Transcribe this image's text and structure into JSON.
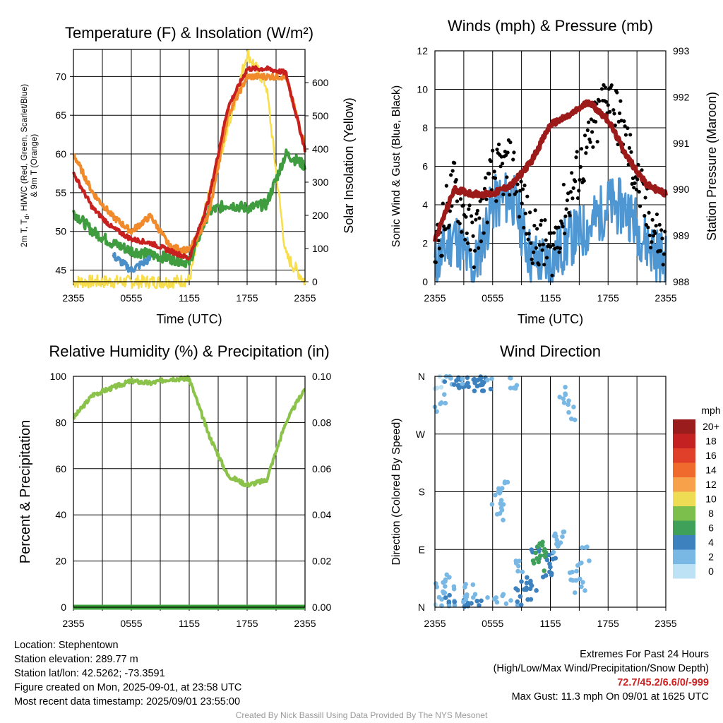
{
  "colors": {
    "temp": "#c8201f",
    "heatidx": "#3f9c3f",
    "scarlet": "#e34a20",
    "wc": "#4a8fc8",
    "t9m": "#f08a2a",
    "solar": "#f7de4a",
    "wind": "#4f97d3",
    "gust": "#000000",
    "pressure": "#9c1a1a",
    "rh": "#8bc34a",
    "precip": "#3aa13a"
  },
  "chart_data": [
    {
      "type": "line",
      "title": "Temperature (F) & Insolation (W/m²)",
      "xlabel": "Time (UTC)",
      "ylabel": "2m T, Td, HI/WC (Red, Green, Scarlet/Blue) & 9m T (Orange)",
      "ylabel_lines": [
        "2m T, T",
        "d",
        ", HI/WC (Red, Green, Scarlet/Blue)",
        "& 9m T (Orange)"
      ],
      "ylabel_right": "Solar Insolation (Yellow)",
      "x_tick_labels": [
        "2355",
        "0555",
        "1155",
        "1755",
        "2355"
      ],
      "ylim": [
        43.5,
        73.5
      ],
      "y_ticks": [
        45,
        50,
        55,
        60,
        65,
        70
      ],
      "ylim_right": [
        0,
        700
      ],
      "y_ticks_right": [
        0,
        100,
        200,
        300,
        400,
        500,
        600
      ],
      "x_hours": [
        0,
        2,
        4,
        6,
        8,
        10,
        12,
        14,
        16,
        18,
        20,
        22,
        24
      ],
      "series": [
        {
          "name": "2m T",
          "axis": "left",
          "values": [
            57.5,
            53,
            50.5,
            49,
            48.5,
            47.5,
            46.5,
            54,
            66,
            71,
            71,
            70.5,
            60.5
          ]
        },
        {
          "name": "9m T",
          "axis": "left",
          "values": [
            60,
            55,
            52,
            50,
            52,
            48,
            47.5,
            52,
            65,
            70,
            70,
            70,
            61
          ]
        },
        {
          "name": "Td",
          "axis": "left",
          "values": [
            52.5,
            50,
            48.5,
            47.5,
            47,
            46.5,
            46,
            52.5,
            53.5,
            53,
            53.5,
            60,
            58.5
          ]
        },
        {
          "name": "WC",
          "axis": "left",
          "values": [
            null,
            null,
            47,
            45,
            46.5,
            null,
            45.5,
            null,
            null,
            null,
            null,
            null,
            null
          ]
        },
        {
          "name": "Solar",
          "axis": "right",
          "values": [
            0,
            0,
            0,
            0,
            0,
            0,
            5,
            260,
            460,
            690,
            590,
            80,
            0
          ]
        }
      ]
    },
    {
      "type": "line",
      "title": "Winds (mph) & Pressure (mb)",
      "xlabel": "Time (UTC)",
      "ylabel": "Sonic Wind & Gust (Blue, Black)",
      "ylabel_right": "Station Pressure (Maroon)",
      "x_tick_labels": [
        "2355",
        "0555",
        "1155",
        "1755",
        "2355"
      ],
      "ylim": [
        0,
        12
      ],
      "y_ticks": [
        0,
        2,
        4,
        6,
        8,
        10,
        12
      ],
      "ylim_right": [
        988,
        993
      ],
      "y_ticks_right": [
        988,
        989,
        990,
        991,
        992,
        993
      ],
      "x_hours": [
        0,
        2,
        4,
        6,
        8,
        10,
        12,
        14,
        16,
        18,
        20,
        22,
        24
      ],
      "series": [
        {
          "name": "Wind",
          "axis": "left",
          "values": [
            0.8,
            2.5,
            0.5,
            4,
            4.5,
            1.2,
            1,
            2.2,
            2.8,
            4,
            3.8,
            2,
            1
          ]
        },
        {
          "name": "Gust",
          "axis": "left",
          "values": [
            1.5,
            5,
            2,
            5.5,
            6,
            2.5,
            1.5,
            4.5,
            7,
            10,
            7,
            3.5,
            1.5
          ]
        },
        {
          "name": "Pressure",
          "axis": "right",
          "values": [
            988.9,
            990,
            989.9,
            989.9,
            990.1,
            990.6,
            991.4,
            991.6,
            991.9,
            991.5,
            990.7,
            990.1,
            989.9
          ]
        }
      ]
    },
    {
      "type": "line",
      "title": "Relative Humidity (%) & Precipitation (in)",
      "ylabel": "Percent & Precipitation",
      "x_tick_labels": [
        "2355",
        "0555",
        "1155",
        "1755",
        "2355"
      ],
      "ylim": [
        0,
        100
      ],
      "y_ticks": [
        0,
        20,
        40,
        60,
        80,
        100
      ],
      "ylim_right": [
        0,
        0.1
      ],
      "y_ticks_right": [
        "0.00",
        "0.02",
        "0.04",
        "0.06",
        "0.08",
        "0.10"
      ],
      "x_hours": [
        0,
        2,
        4,
        6,
        8,
        10,
        12,
        14,
        16,
        18,
        20,
        22,
        24
      ],
      "series": [
        {
          "name": "RH",
          "axis": "left",
          "values": [
            82,
            92,
            95,
            98,
            97,
            99,
            99,
            75,
            57,
            53,
            55,
            80,
            95
          ]
        },
        {
          "name": "Precipitation",
          "axis": "right",
          "values": [
            0,
            0,
            0,
            0,
            0,
            0,
            0,
            0,
            0,
            0,
            0,
            0,
            0
          ]
        }
      ]
    },
    {
      "type": "scatter",
      "title": "Wind Direction",
      "ylabel": "Direction (Colored By Speed)",
      "x_tick_labels": [
        "2355",
        "0555",
        "1155",
        "1755",
        "2355"
      ],
      "y_tick_labels": [
        "N",
        "E",
        "S",
        "W",
        "N"
      ],
      "ylim": [
        0,
        360
      ],
      "legend_title": "mph",
      "legend": [
        {
          "label": "20+",
          "color": "#9b1c1c"
        },
        {
          "label": "18",
          "color": "#c42222"
        },
        {
          "label": "16",
          "color": "#e0402a"
        },
        {
          "label": "14",
          "color": "#f06a2e"
        },
        {
          "label": "12",
          "color": "#f7a24a"
        },
        {
          "label": "10",
          "color": "#eedc55"
        },
        {
          "label": "8",
          "color": "#7cbf4c"
        },
        {
          "label": "6",
          "color": "#3fa05a"
        },
        {
          "label": "4",
          "color": "#3d82bf"
        },
        {
          "label": "2",
          "color": "#79b8e4"
        },
        {
          "label": "0",
          "color": "#bde2f6"
        }
      ],
      "points": [
        {
          "x": 0.3,
          "dir": 350,
          "speed": 0
        },
        {
          "x": 0.5,
          "dir": 320,
          "speed": 1
        },
        {
          "x": 0.6,
          "dir": 30,
          "speed": 1
        },
        {
          "x": 1.0,
          "dir": 10,
          "speed": 2
        },
        {
          "x": 1.2,
          "dir": 5,
          "speed": 3
        },
        {
          "x": 1.5,
          "dir": 40,
          "speed": 1
        },
        {
          "x": 2.0,
          "dir": 355,
          "speed": 2
        },
        {
          "x": 2.4,
          "dir": 358,
          "speed": 4
        },
        {
          "x": 2.7,
          "dir": 350,
          "speed": 3
        },
        {
          "x": 3.0,
          "dir": 356,
          "speed": 4
        },
        {
          "x": 3.4,
          "dir": 2,
          "speed": 1
        },
        {
          "x": 3.6,
          "dir": 30,
          "speed": 2
        },
        {
          "x": 4.0,
          "dir": 352,
          "speed": 4
        },
        {
          "x": 4.5,
          "dir": 357,
          "speed": 3
        },
        {
          "x": 5.0,
          "dir": 348,
          "speed": 4
        },
        {
          "x": 5.3,
          "dir": 345,
          "speed": 3
        },
        {
          "x": 6.0,
          "dir": 5,
          "speed": 1
        },
        {
          "x": 6.5,
          "dir": 168,
          "speed": 2
        },
        {
          "x": 6.8,
          "dir": 150,
          "speed": 1
        },
        {
          "x": 7.2,
          "dir": 188,
          "speed": 2
        },
        {
          "x": 7.5,
          "dir": 10,
          "speed": 1
        },
        {
          "x": 8.0,
          "dir": 355,
          "speed": 1
        },
        {
          "x": 8.5,
          "dir": 60,
          "speed": 1
        },
        {
          "x": 9.0,
          "dir": 15,
          "speed": 4
        },
        {
          "x": 9.5,
          "dir": 40,
          "speed": 3
        },
        {
          "x": 10.0,
          "dir": 25,
          "speed": 4
        },
        {
          "x": 10.4,
          "dir": 88,
          "speed": 4
        },
        {
          "x": 10.8,
          "dir": 70,
          "speed": 5
        },
        {
          "x": 11.0,
          "dir": 90,
          "speed": 6
        },
        {
          "x": 11.3,
          "dir": 85,
          "speed": 6
        },
        {
          "x": 11.8,
          "dir": 60,
          "speed": 4
        },
        {
          "x": 12.2,
          "dir": 80,
          "speed": 3
        },
        {
          "x": 12.7,
          "dir": 100,
          "speed": 2
        },
        {
          "x": 13.0,
          "dir": 110,
          "speed": 1
        },
        {
          "x": 13.5,
          "dir": 330,
          "speed": 1
        },
        {
          "x": 14.0,
          "dir": 305,
          "speed": 1
        },
        {
          "x": 14.5,
          "dir": 55,
          "speed": 1
        },
        {
          "x": 15.0,
          "dir": 30,
          "speed": 1
        },
        {
          "x": 15.5,
          "dir": 80,
          "speed": 1
        }
      ]
    }
  ],
  "info": {
    "location": "Location: Stephentown",
    "elevation": "Station elevation: 289.77 m",
    "latlon": "Station lat/lon: 42.5262; -73.3591",
    "created": "Figure created on Mon, 2025-09-01, at 23:58 UTC",
    "recent": "Most recent data timestamp: 2025/09/01 23:55:00"
  },
  "extremes": {
    "title": "Extremes For Past 24 Hours",
    "subtitle": "(High/Low/Max Wind/Precipitation/Snow Depth)",
    "values": "72.7/45.2/6.6/0/-999",
    "gust": "Max Gust: 11.3 mph On 09/01 at 1625 UTC"
  },
  "credit": "Created By Nick Bassill Using Data Provided By The NYS Mesonet"
}
